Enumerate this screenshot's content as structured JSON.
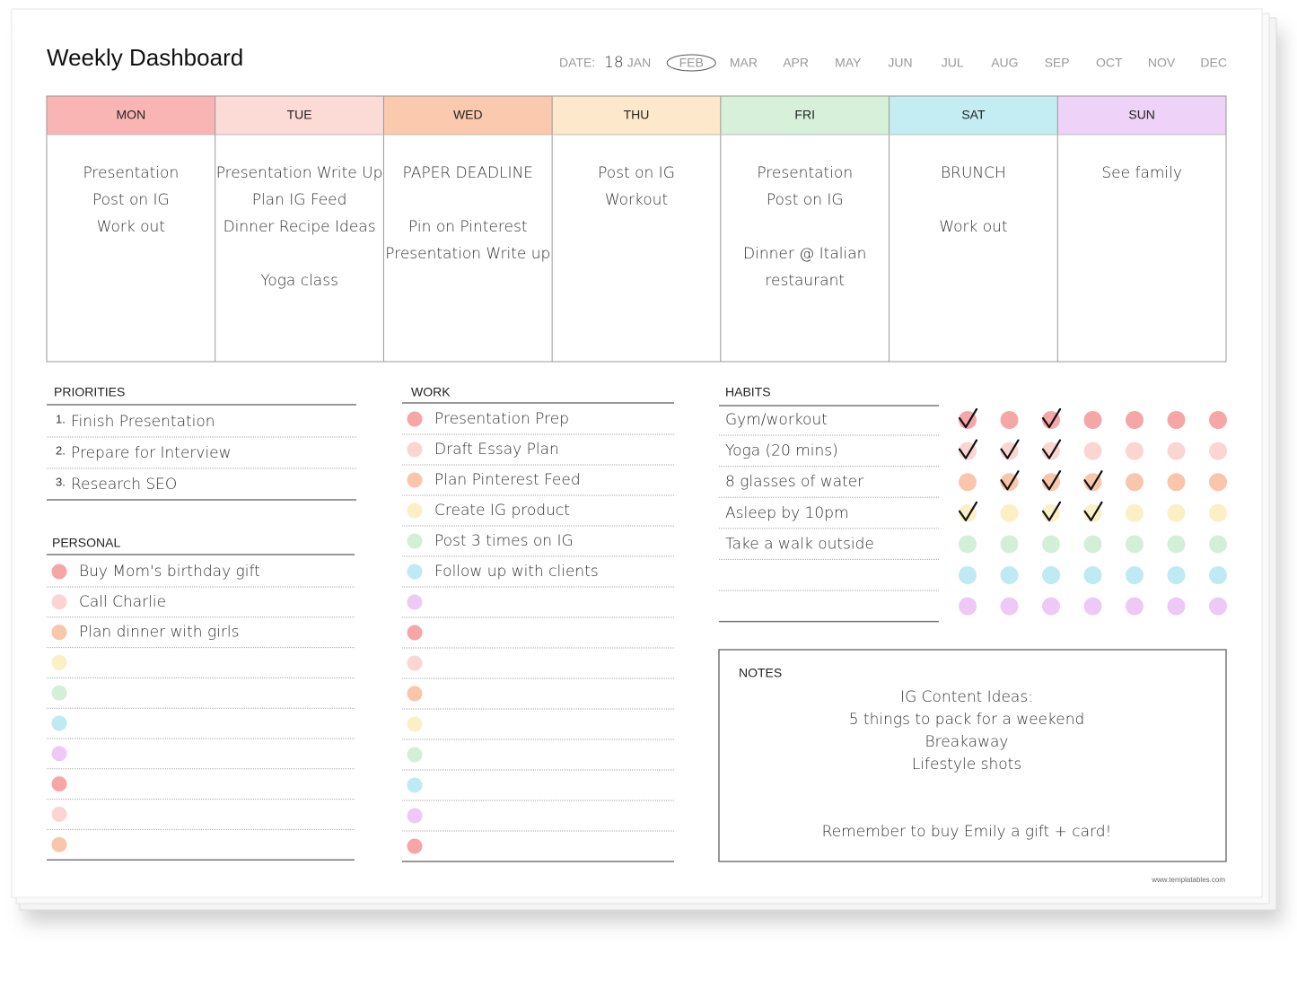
{
  "header": {
    "title": "Weekly Dashboard",
    "date_label": "DATE:",
    "date_value": "18",
    "months": [
      "JAN",
      "FEB",
      "MAR",
      "APR",
      "MAY",
      "JUN",
      "JUL",
      "AUG",
      "SEP",
      "OCT",
      "NOV",
      "DEC"
    ],
    "circled_month": 1
  },
  "days": [
    {
      "name": "MON",
      "color": "#f9b5b4",
      "entries": [
        "Presentation",
        "Post on IG",
        "Work out"
      ]
    },
    {
      "name": "TUE",
      "color": "#fcdad6",
      "entries": [
        "Presentation Write Up",
        "Plan IG Feed",
        "Dinner Recipe Ideas",
        null,
        "Yoga class"
      ]
    },
    {
      "name": "WED",
      "color": "#fbc9ad",
      "entries": [
        "PAPER DEADLINE",
        null,
        "Pin on Pinterest",
        "Presentation Write up"
      ]
    },
    {
      "name": "THU",
      "color": "#fde8cc",
      "entries": [
        "Post on IG",
        "Workout"
      ]
    },
    {
      "name": "FRI",
      "color": "#d6f0d9",
      "entries": [
        "Presentation",
        "Post on IG",
        null,
        "Dinner @ Italian",
        "restaurant"
      ]
    },
    {
      "name": "SAT",
      "color": "#c4ecf3",
      "entries": [
        "BRUNCH",
        null,
        "Work out"
      ]
    },
    {
      "name": "SUN",
      "color": "#eed2f7",
      "entries": [
        "See family"
      ]
    }
  ],
  "priorities": {
    "title": "PRIORITIES",
    "items": [
      {
        "number": "1.",
        "text": "Finish Presentation"
      },
      {
        "number": "2.",
        "text": "Prepare for Interview"
      },
      {
        "number": "3.",
        "text": "Research SEO"
      }
    ]
  },
  "personal": {
    "title": "PERSONAL",
    "rows": [
      {
        "color": "#f7a6a8",
        "text": "Buy Mom's birthday gift"
      },
      {
        "color": "#fbd5d2",
        "text": "Call Charlie"
      },
      {
        "color": "#f9c6ab",
        "text": "Plan dinner with girls"
      },
      {
        "color": "#fbefc6"
      },
      {
        "color": "#d3efd8"
      },
      {
        "color": "#bfe9f3"
      },
      {
        "color": "#efc9f6"
      },
      {
        "color": "#f7a6a8"
      },
      {
        "color": "#fbd5d2"
      },
      {
        "color": "#f9c6ab"
      }
    ]
  },
  "work": {
    "title": "WORK",
    "rows": [
      {
        "color": "#f7a6a8",
        "text": "Presentation Prep"
      },
      {
        "color": "#fbd5d2",
        "text": "Draft Essay Plan"
      },
      {
        "color": "#f9c6ab",
        "text": "Plan Pinterest Feed"
      },
      {
        "color": "#fbefc6",
        "text": "Create IG product"
      },
      {
        "color": "#d3efd8",
        "text": "Post 3 times on IG"
      },
      {
        "color": "#bfe9f3",
        "text": "Follow up with clients"
      },
      {
        "color": "#efc9f6"
      },
      {
        "color": "#f7a6a8"
      },
      {
        "color": "#fbd5d2"
      },
      {
        "color": "#f9c6ab"
      },
      {
        "color": "#fbefc6"
      },
      {
        "color": "#d3efd8"
      },
      {
        "color": "#bfe9f3"
      },
      {
        "color": "#efc9f6"
      },
      {
        "color": "#f7a6a8"
      }
    ]
  },
  "habits": {
    "title": "HABITS",
    "rows": [
      {
        "color": "#f7a6a8",
        "text": "Gym/workout",
        "checks": [
          true,
          false,
          true,
          false,
          false,
          false,
          false
        ]
      },
      {
        "color": "#fbd5d2",
        "text": "Yoga (20 mins)",
        "checks": [
          true,
          true,
          true,
          false,
          false,
          false,
          false
        ]
      },
      {
        "color": "#f9c6ab",
        "text": "8 glasses of water",
        "checks": [
          false,
          true,
          true,
          true,
          false,
          false,
          false
        ]
      },
      {
        "color": "#fbefc6",
        "text": "Asleep by 10pm",
        "checks": [
          true,
          false,
          true,
          true,
          false,
          false,
          false
        ]
      },
      {
        "color": "#d3efd8",
        "text": "Take a walk outside",
        "checks": [
          false,
          false,
          false,
          false,
          false,
          false,
          false
        ]
      },
      {
        "color": "#bfe9f3",
        "checks": [
          false,
          false,
          false,
          false,
          false,
          false,
          false
        ]
      },
      {
        "color": "#efc9f6",
        "checks": [
          false,
          false,
          false,
          false,
          false,
          false,
          false
        ]
      }
    ]
  },
  "notes": {
    "title": "NOTES",
    "lines": [
      "IG Content Ideas:",
      "5 things to pack for a weekend",
      "Breakaway",
      "Lifestyle shots",
      null,
      null,
      "Remember to buy Emily a gift + card!"
    ]
  },
  "footer": "www.templatables.com"
}
